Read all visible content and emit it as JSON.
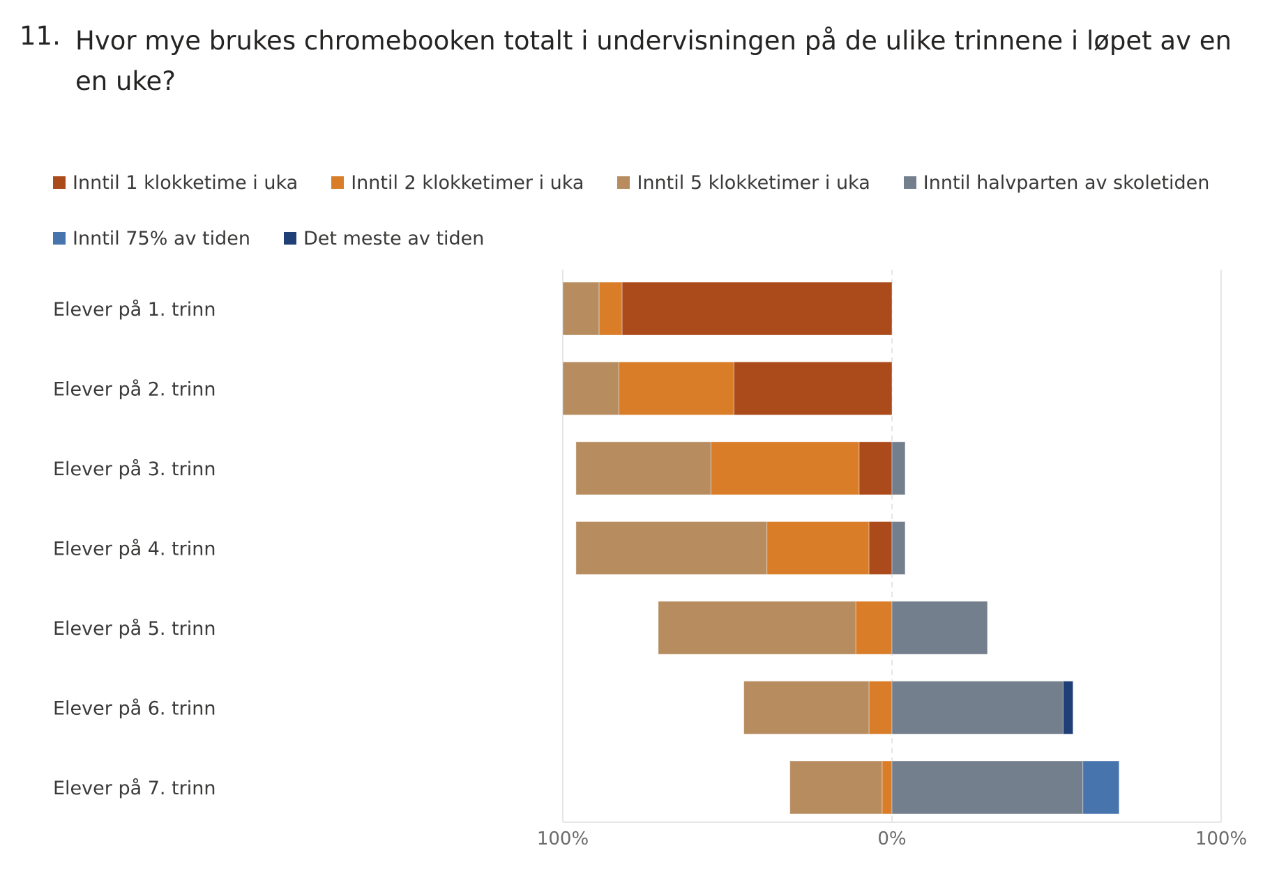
{
  "question": {
    "number": "11.",
    "title": "Hvor mye brukes chromebooken totalt i undervisningen på de ulike trinnene i løpet av en en uke?"
  },
  "chart_data": {
    "type": "bar",
    "orientation": "horizontal",
    "stacking": "diverging",
    "categories": [
      "Elever på 1. trinn",
      "Elever på 2. trinn",
      "Elever på 3. trinn",
      "Elever på 4. trinn",
      "Elever på 5. trinn",
      "Elever på 6. trinn",
      "Elever på 7. trinn"
    ],
    "series": [
      {
        "name": "Inntil 1  klokketime i uka",
        "color": "#AB4A1A",
        "side": "left",
        "values": [
          82,
          48,
          10,
          7,
          0,
          0,
          0
        ]
      },
      {
        "name": "Inntil 2 klokketimer i uka",
        "color": "#D97D29",
        "side": "left",
        "values": [
          7,
          35,
          45,
          31,
          11,
          7,
          3
        ]
      },
      {
        "name": "Inntil 5 klokketimer i uka",
        "color": "#B78D60",
        "side": "left",
        "values": [
          11,
          17,
          41,
          58,
          60,
          38,
          28
        ]
      },
      {
        "name": "Inntil halvparten av skoletiden",
        "color": "#747F8E",
        "side": "right",
        "values": [
          0,
          0,
          4,
          4,
          29,
          52,
          58
        ]
      },
      {
        "name": "Inntil 75% av tiden",
        "color": "#4874AE",
        "side": "right",
        "values": [
          0,
          0,
          0,
          0,
          0,
          0,
          11
        ]
      },
      {
        "name": "Det meste av tiden",
        "color": "#213F77",
        "side": "right",
        "values": [
          0,
          0,
          0,
          0,
          0,
          3,
          0
        ]
      }
    ],
    "xlim": [
      -100,
      100
    ],
    "x_ticks": [
      "100%",
      "0%",
      "100%"
    ],
    "grid": true,
    "legend_position": "top"
  }
}
